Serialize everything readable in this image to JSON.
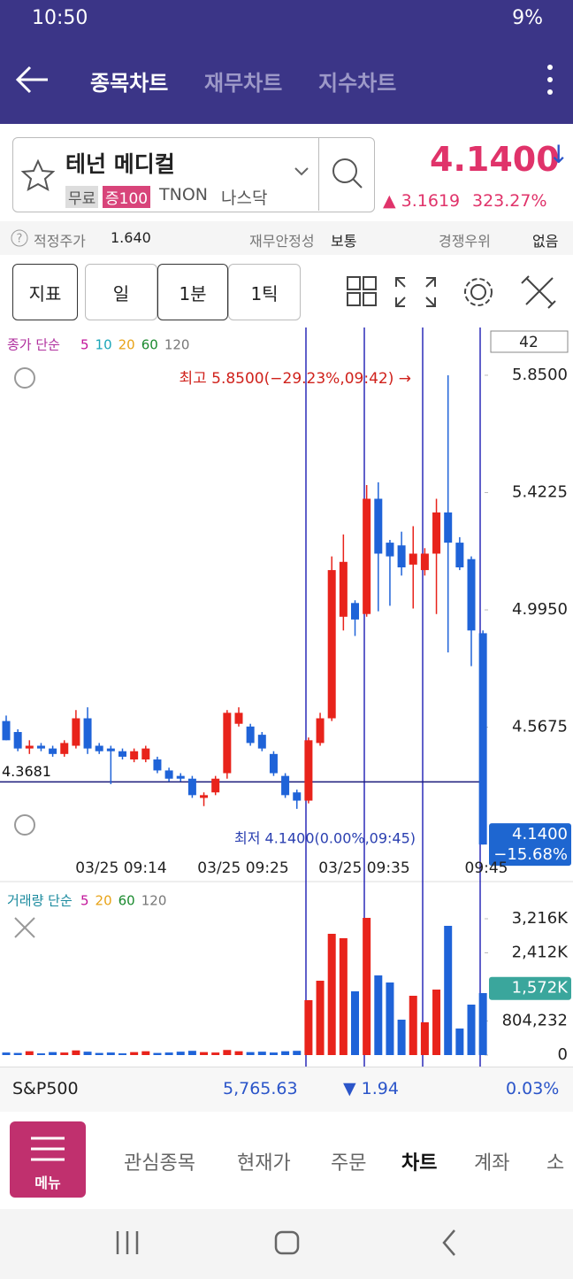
{
  "status_bar": {
    "time": "10:50",
    "battery": "9%"
  },
  "header": {
    "tabs": [
      "종목차트",
      "재무차트",
      "지수차트"
    ]
  },
  "stock": {
    "name": "테넌 메디컬",
    "tags": [
      "무료",
      "증100"
    ],
    "ticker": "TNON",
    "market": "나스닥",
    "price": "4.1400",
    "price_arrow": "↓",
    "change": "▲ 3.1619",
    "change_pct": "323.27%"
  },
  "info": [
    {
      "label": "적정주가",
      "value": "1.640"
    },
    {
      "label": "재무안정성",
      "value": "보통"
    },
    {
      "label": "경쟁우위",
      "value": "없음"
    }
  ],
  "toolbar": {
    "buttons": [
      "지표",
      "일",
      "1분",
      "1틱"
    ]
  },
  "price_chart": {
    "legend": {
      "title": "종가 단순",
      "periods": [
        "5",
        "10",
        "20",
        "60",
        "120"
      ]
    },
    "count": "42",
    "ylim": [
      4.105,
      6.024
    ],
    "yticks": [
      {
        "value": 5.85,
        "label": "5.8500"
      },
      {
        "value": 5.4225,
        "label": "5.4225"
      },
      {
        "value": 4.995,
        "label": "4.9950"
      },
      {
        "value": 4.5675,
        "label": "4.5675"
      }
    ],
    "candles": [
      [
        4.59,
        4.61,
        4.52,
        4.52
      ],
      [
        4.55,
        4.56,
        4.48,
        4.49
      ],
      [
        4.49,
        4.52,
        4.47,
        4.5
      ],
      [
        4.5,
        4.51,
        4.48,
        4.49
      ],
      [
        4.49,
        4.5,
        4.46,
        4.47
      ],
      [
        4.47,
        4.52,
        4.46,
        4.51
      ],
      [
        4.5,
        4.63,
        4.49,
        4.6
      ],
      [
        4.6,
        4.64,
        4.47,
        4.49
      ],
      [
        4.5,
        4.51,
        4.47,
        4.48
      ],
      [
        4.49,
        4.5,
        4.36,
        4.48
      ],
      [
        4.48,
        4.49,
        4.45,
        4.46
      ],
      [
        4.45,
        4.49,
        4.44,
        4.48
      ],
      [
        4.45,
        4.5,
        4.44,
        4.49
      ],
      [
        4.45,
        4.46,
        4.4,
        4.41
      ],
      [
        4.41,
        4.42,
        4.37,
        4.38
      ],
      [
        4.39,
        4.4,
        4.37,
        4.38
      ],
      [
        4.38,
        4.39,
        4.31,
        4.32
      ],
      [
        4.31,
        4.33,
        4.28,
        4.32
      ],
      [
        4.33,
        4.39,
        4.32,
        4.38
      ],
      [
        4.4,
        4.63,
        4.38,
        4.62
      ],
      [
        4.58,
        4.64,
        4.57,
        4.62
      ],
      [
        4.57,
        4.58,
        4.5,
        4.51
      ],
      [
        4.54,
        4.55,
        4.48,
        4.49
      ],
      [
        4.47,
        4.48,
        4.39,
        4.4
      ],
      [
        4.39,
        4.4,
        4.31,
        4.32
      ],
      [
        4.33,
        4.34,
        4.27,
        4.3
      ],
      [
        4.3,
        4.53,
        4.29,
        4.52
      ],
      [
        4.51,
        4.62,
        4.5,
        4.6
      ],
      [
        4.6,
        5.19,
        4.59,
        5.14
      ],
      [
        4.97,
        5.27,
        4.92,
        5.17
      ],
      [
        5.02,
        5.03,
        4.9,
        4.96
      ],
      [
        4.98,
        5.45,
        4.97,
        5.4
      ],
      [
        5.4,
        5.46,
        4.99,
        5.2
      ],
      [
        5.24,
        5.25,
        5.01,
        5.19
      ],
      [
        5.23,
        5.28,
        5.12,
        5.15
      ],
      [
        5.16,
        5.3,
        5.0,
        5.2
      ],
      [
        5.14,
        5.22,
        5.12,
        5.2
      ],
      [
        5.2,
        5.4,
        4.98,
        5.35
      ],
      [
        5.35,
        5.85,
        4.84,
        5.24
      ],
      [
        5.24,
        5.26,
        5.14,
        5.15
      ],
      [
        5.18,
        5.19,
        4.79,
        4.92
      ],
      [
        4.91,
        4.92,
        4.14,
        4.14
      ]
    ],
    "high_note": "최고 5.8500(−29.23%,09:42) →",
    "low_note": "최저 4.1400(0.00%,09:45)",
    "reference": {
      "value": 4.3681,
      "label": "4.3681"
    },
    "current": {
      "value": 4.14,
      "label": "4.1400",
      "change": "−15.68%"
    },
    "time_labels": [
      "03/25 09:14",
      "03/25 09:25",
      "03/25 09:35",
      "09:45"
    ]
  },
  "volume_chart": {
    "legend": {
      "title": "거래량 단순",
      "periods": [
        "5",
        "20",
        "60",
        "120"
      ]
    },
    "ylim": [
      0,
      3592000
    ],
    "yticks": [
      0,
      {
        "value": 804232,
        "label": "804,232"
      },
      {
        "value": 2412000,
        "label": "2,412K"
      },
      {
        "value": 3216000,
        "label": "3,216K"
      }
    ],
    "values": [
      60000,
      50000,
      90000,
      40000,
      70000,
      60000,
      110000,
      80000,
      50000,
      60000,
      40000,
      70000,
      90000,
      50000,
      60000,
      80000,
      100000,
      70000,
      60000,
      120000,
      90000,
      70000,
      80000,
      60000,
      90000,
      100000,
      1295000,
      1754000,
      2861000,
      2757000,
      1504000,
      3237000,
      1879000,
      1712000,
      835000,
      1399000,
      773000,
      1545000,
      3049000,
      626000,
      1190000,
      1462000
    ],
    "current": {
      "value": 1572000,
      "label": "1,572K"
    }
  },
  "index_bar": {
    "name": "S&P500",
    "value": "5,765.63",
    "change": "▼ 1.94",
    "change_pct": "0.03%"
  },
  "nav": {
    "menu": "메뉴",
    "tabs": [
      "관심종목",
      "현재가",
      "주문",
      "차트",
      "계좌",
      "소"
    ]
  }
}
